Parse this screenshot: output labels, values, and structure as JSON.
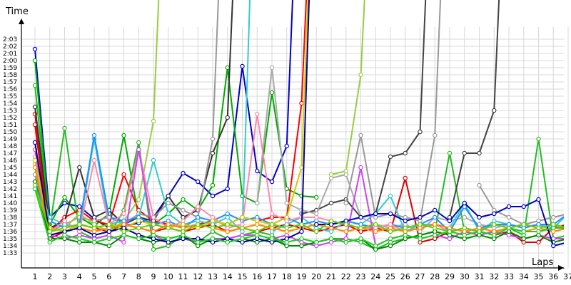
{
  "chart_data": {
    "type": "line",
    "xlabel": "Laps",
    "ylabel": "Time",
    "grid": true,
    "x": [
      1,
      2,
      3,
      4,
      5,
      6,
      7,
      8,
      9,
      10,
      11,
      12,
      13,
      14,
      15,
      16,
      17,
      18,
      19,
      20,
      21,
      22,
      23,
      24,
      25,
      26,
      27,
      28,
      29,
      30,
      31,
      32,
      33,
      34,
      35,
      36,
      37
    ],
    "ylim_seconds": [
      93,
      123
    ],
    "y_tick_labels": [
      "1:33",
      "1:34",
      "1:35",
      "1:36",
      "1:37",
      "1:38",
      "1:39",
      "1:40",
      "1:41",
      "1:42",
      "1:43",
      "1:44",
      "1:45",
      "1:46",
      "1:47",
      "1:48",
      "1:49",
      "1:50",
      "1:51",
      "1:52",
      "1:53",
      "1:54",
      "1:55",
      "1:56",
      "1:57",
      "1:58",
      "1:59",
      "2:00",
      "2:01",
      "2:02",
      "2:03"
    ],
    "series": [
      {
        "color": "#0000cc",
        "values": [
          "2:01.6",
          "1:38.0",
          "1:40.0",
          "1:39.5",
          "1:37.8",
          "1:36.5",
          "1:36.8",
          "1:37.2",
          "1:38.0",
          "1:41.0",
          "1:44.2",
          "1:43.0",
          "1:41.0",
          "1:42.0",
          "1:59.2",
          "1:44.5",
          "1:43.0",
          "1:48.0",
          "2:40.0",
          null,
          null,
          null,
          null,
          null,
          null,
          null,
          null,
          null,
          null,
          null,
          null,
          null,
          null,
          null,
          null,
          null,
          null
        ]
      },
      {
        "color": "#00aa00",
        "values": [
          "2:00.0",
          "1:37.0",
          "1:40.8",
          "1:38.0",
          "1:36.8",
          "1:38.5",
          "1:49.5",
          "1:38.0",
          "1:37.0",
          "1:38.5",
          "1:40.5",
          "1:39.0",
          "1:42.5",
          "1:59.0",
          "1:41.0",
          "1:40.0",
          "1:55.5",
          "1:42.0",
          "1:41.0",
          "1:40.8",
          "null",
          null,
          null,
          null,
          null,
          null,
          null,
          null,
          null,
          null,
          null,
          null,
          null,
          null,
          null,
          null,
          null
        ]
      },
      {
        "color": "#22bb22",
        "values": [
          "1:56.5",
          "1:36.5",
          "1:50.5",
          "1:36.0",
          "1:35.0",
          "1:35.5",
          "1:39.0",
          "1:48.5",
          "1:33.5",
          "1:34.0",
          "1:35.5",
          "1:34.5",
          "1:36.0",
          "1:35.0",
          "1:35.5",
          "1:36.0",
          "1:35.5",
          "1:34.0",
          "1:34.0",
          "1:34.5",
          "1:35.0",
          "1:35.0",
          "1:34.5",
          "1:33.5",
          "1:34.5",
          "1:35.0",
          "1:35.5",
          "1:36.0",
          "1:47.0",
          "1:36.0",
          "1:35.5",
          "1:36.0",
          "1:36.5",
          "1:35.5",
          "1:49.0",
          "1:35.0",
          "1:35.5"
        ]
      },
      {
        "color": "#ff0000",
        "values": [
          "1:52.5",
          "1:36.0",
          "1:38.0",
          "1:39.0",
          "1:37.5",
          "1:37.0",
          "1:44.0",
          "1:39.0",
          "1:37.5",
          "1:37.0",
          "1:36.5",
          "1:37.0",
          "1:37.5",
          "1:37.0",
          "1:38.0",
          "1:37.5",
          "1:38.0",
          "1:38.0",
          "1:54.0",
          "2:40.0",
          null,
          null,
          null,
          null,
          null,
          null,
          null,
          null,
          null,
          null,
          null,
          null,
          null,
          null,
          null,
          null,
          null
        ]
      },
      {
        "color": "#dd0000",
        "values": [
          "1:51.0",
          "1:35.0",
          "1:36.0",
          "1:37.0",
          "1:36.5",
          "1:36.0",
          "1:37.0",
          "1:36.5",
          "1:36.0",
          "1:36.5",
          "1:36.0",
          "1:36.5",
          "1:37.0",
          "1:36.0",
          "1:36.5",
          "1:36.0",
          "1:36.5",
          "1:37.0",
          "1:36.5",
          "1:36.0",
          "1:36.5",
          "1:37.0",
          "1:36.0",
          "1:36.5",
          "1:36.0",
          "1:43.5",
          "1:34.5",
          "1:35.0",
          "1:36.0",
          "1:36.5",
          "1:36.0",
          "1:35.5",
          "1:36.0",
          "1:34.5",
          "1:34.5",
          "1:36.5",
          "1:37.0"
        ]
      },
      {
        "color": "#333333",
        "values": [
          "1:53.5",
          "1:36.5",
          "1:37.5",
          "1:45.0",
          "1:38.0",
          "1:39.0",
          "1:37.0",
          "1:38.0",
          "1:37.5",
          "1:41.0",
          "1:38.0",
          "1:39.0",
          "1:47.0",
          "1:52.0",
          "2:40.0",
          null,
          null,
          null,
          null,
          null,
          null,
          null,
          null,
          null,
          null,
          null,
          null,
          null,
          null,
          null,
          null,
          null,
          null,
          null,
          null,
          null,
          null
        ]
      },
      {
        "color": "#444444",
        "values": [
          null,
          null,
          null,
          null,
          null,
          null,
          null,
          null,
          null,
          null,
          null,
          null,
          null,
          null,
          null,
          null,
          null,
          null,
          "1:38.5",
          "1:39.0",
          "1:40.0",
          "1:40.5",
          "1:38.0",
          "1:38.5",
          "1:46.5",
          "1:47.0",
          "1:50.0",
          "2:40.0",
          null,
          null,
          null,
          null,
          null,
          null,
          null,
          null,
          null
        ]
      },
      {
        "color": "#444444",
        "values": [
          null,
          null,
          null,
          null,
          null,
          null,
          null,
          null,
          null,
          null,
          null,
          null,
          null,
          null,
          null,
          null,
          null,
          null,
          null,
          null,
          null,
          null,
          null,
          null,
          null,
          null,
          null,
          null,
          "1:38.0",
          "1:47.0",
          "1:47.0",
          "1:53.0",
          "2:40.0",
          null,
          null,
          null,
          null
        ]
      },
      {
        "color": "#999999",
        "values": [
          "1:44.0",
          "1:36.0",
          "1:37.0",
          "1:38.0",
          "1:37.5",
          "1:38.0",
          "1:37.0",
          "1:38.5",
          "1:38.0",
          "1:40.0",
          "1:39.0",
          "1:38.0",
          "1:49.0",
          "2:40.0",
          null,
          null,
          null,
          null,
          null,
          null,
          null,
          "1:40.0",
          "1:49.5",
          "1:38.0",
          "1:38.5",
          "1:38.0",
          "1:37.5",
          "1:49.5",
          "2:40.0",
          null,
          "1:42.5",
          "1:39.0",
          "1:38.0",
          "1:37.0",
          "1:37.5",
          "1:38.0",
          "1:38.5"
        ]
      },
      {
        "color": "#aaaaaa",
        "values": [
          null,
          null,
          null,
          null,
          null,
          null,
          null,
          null,
          null,
          null,
          null,
          null,
          null,
          null,
          null,
          "1:40.0",
          "1:59.0",
          "1:40.0",
          "1:39.0",
          "1:38.5",
          "1:43.5",
          "1:44.0",
          "1:38.0",
          "1:37.0",
          "1:36.5",
          "1:37.0",
          "1:36.0",
          "1:38.0",
          "1:37.5",
          "1:38.0",
          "1:37.0",
          "1:36.5",
          "1:37.0",
          "1:36.5",
          "1:37.0",
          "1:36.0",
          "1:36.5"
        ]
      },
      {
        "color": "#99cc44",
        "values": [
          "1:45.5",
          "1:37.5",
          "1:36.5",
          "1:38.5",
          "1:37.0",
          "1:36.0",
          "1:37.5",
          "1:40.5",
          "1:51.5",
          "2:40.0",
          null,
          null,
          null,
          null,
          null,
          null,
          null,
          null,
          null,
          null,
          "1:44.0",
          "1:44.5",
          "1:58.0",
          "2:40.0",
          null,
          null,
          null,
          null,
          null,
          null,
          null,
          null,
          null,
          null,
          null,
          null,
          null
        ]
      },
      {
        "color": "#33cccc",
        "values": [
          "1:42.0",
          "1:38.0",
          "1:37.0",
          "1:36.5",
          "1:49.0",
          "1:37.0",
          "1:37.5",
          "1:38.0",
          "1:46.0",
          "1:38.5",
          "1:37.0",
          "1:37.5",
          "1:37.0",
          "1:38.0",
          "1:36.0",
          "2:40.0",
          null,
          null,
          null,
          null,
          null,
          null,
          null,
          null,
          null,
          null,
          null,
          null,
          null,
          null,
          null,
          null,
          null,
          null,
          null,
          null,
          null
        ]
      },
      {
        "color": "#33cccc",
        "values": [
          null,
          null,
          null,
          null,
          null,
          null,
          null,
          null,
          null,
          null,
          null,
          null,
          null,
          null,
          null,
          null,
          "1:36.0",
          "1:37.0",
          "1:38.0",
          "1:36.5",
          "1:36.0",
          "1:37.5",
          "1:37.0",
          "1:38.5",
          "1:41.0",
          "1:36.0",
          "1:37.0",
          "1:37.0",
          "1:36.5",
          "1:40.0",
          "1:36.0",
          "1:37.5",
          "1:37.0",
          "1:36.5",
          "1:37.0",
          "1:36.5",
          "1:38.5"
        ]
      },
      {
        "color": "#1e90ff",
        "values": [
          "1:43.0",
          "1:37.5",
          "1:36.5",
          "1:37.0",
          "1:49.5",
          "1:38.0",
          "1:37.5",
          "1:38.0",
          "1:37.0",
          "1:37.5",
          "1:36.5",
          "1:38.0",
          "1:37.5",
          "1:38.5",
          "1:37.5",
          "1:38.0",
          "1:37.0",
          "1:38.0",
          "1:37.0",
          "1:37.5",
          "1:37.0",
          "1:37.5",
          "1:37.0",
          "1:36.5",
          "1:37.0",
          "1:36.5",
          "1:37.0",
          "1:38.0",
          "1:36.0",
          "1:39.5",
          "1:36.5",
          "1:37.0",
          "1:37.0",
          "1:36.5",
          "1:37.0",
          "1:37.0",
          "1:38.5"
        ]
      },
      {
        "color": "#ff88aa",
        "values": [
          "1:46.5",
          "1:36.0",
          "1:37.5",
          "1:36.0",
          "1:46.0",
          "1:37.0",
          "1:38.5",
          "1:47.5",
          "1:38.0",
          "1:36.5",
          "1:37.5",
          "1:39.5",
          "1:38.0",
          "1:36.5",
          "1:37.0",
          "1:52.5",
          "1:38.5",
          "1:37.5",
          "1:38.0",
          "1:38.0",
          "1:37.5",
          "1:37.0",
          "1:36.5",
          "1:36.5",
          "1:37.0",
          "1:36.0",
          "1:36.5",
          "1:37.0",
          "1:36.0",
          "1:36.5",
          "1:36.0",
          "1:37.0",
          "1:36.5",
          "1:37.0",
          "1:36.5",
          "1:37.0",
          "1:36.0"
        ]
      },
      {
        "color": "#cc44ee",
        "values": [
          "1:47.5",
          "1:35.5",
          "1:35.0",
          "1:35.5",
          "1:35.0",
          "1:35.5",
          "1:34.5",
          "1:47.5",
          "1:35.5",
          "1:34.5",
          "1:35.0",
          "1:34.5",
          "1:35.0",
          "1:35.0",
          "1:35.5",
          "1:35.5",
          "1:35.0",
          "1:35.5",
          "1:34.5",
          "1:34.0",
          "1:34.5",
          "1:35.0",
          "1:45.0",
          "1:34.0",
          "1:35.0",
          "1:35.5",
          "1:35.0",
          "1:35.5",
          "1:35.0",
          "1:36.0",
          "1:35.5",
          "1:36.0",
          "1:35.5",
          "1:35.0",
          "1:35.5",
          "1:35.0",
          "1:35.0"
        ]
      },
      {
        "color": "#cccc00",
        "values": [
          "1:46.0",
          "1:36.5",
          "1:36.0",
          "1:37.0",
          "1:36.5",
          "1:37.0",
          "1:36.5",
          "1:37.5",
          "1:37.0",
          "1:36.5",
          "1:37.0",
          "1:36.5",
          "1:37.5",
          "1:37.0",
          "1:38.0",
          "1:37.5",
          "1:37.0",
          "1:38.0",
          "1:45.0",
          "2:40.0",
          null,
          null,
          null,
          null,
          null,
          null,
          null,
          null,
          null,
          null,
          null,
          null,
          null,
          null,
          null,
          null,
          null
        ]
      },
      {
        "color": "#ff8800",
        "values": [
          "1:45.0",
          "1:35.5",
          "1:36.0",
          "1:36.5",
          "1:36.0",
          "1:36.5",
          "1:37.0",
          "1:36.5",
          "1:36.0",
          "1:37.0",
          "1:36.5",
          "1:37.0",
          "1:36.5",
          "1:36.0",
          "1:36.5",
          "1:37.0",
          "1:36.5",
          "1:36.0",
          "1:36.5",
          "1:37.0",
          "1:36.5",
          "1:36.0",
          "1:36.5",
          "1:36.0",
          "1:36.5",
          "1:36.0",
          "1:36.5",
          "1:37.0",
          "1:36.5",
          "1:36.0",
          "1:36.5",
          "1:36.0",
          "1:36.5",
          "1:36.0",
          "1:36.5",
          "1:36.0",
          "1:36.5"
        ]
      },
      {
        "color": "#008800",
        "values": [
          "1:43.0",
          "1:35.0",
          "1:35.0",
          "1:34.5",
          "1:34.5",
          "1:34.0",
          "1:35.5",
          "1:35.0",
          "1:34.5",
          "1:35.0",
          "1:35.5",
          "1:34.0",
          "1:35.0",
          "1:34.5",
          "1:35.0",
          "1:34.5",
          "1:35.0",
          "1:34.0",
          "1:34.0",
          "1:34.5",
          "1:35.0",
          "1:34.5",
          "1:35.0",
          "1:33.5",
          "1:34.0",
          "1:35.0",
          "1:35.5",
          "1:36.0",
          "1:35.5",
          "1:35.0",
          "1:35.5",
          "1:35.0",
          "1:36.0",
          "1:35.0",
          "1:35.5",
          "1:34.5",
          "1:35.0"
        ]
      },
      {
        "color": "#000099",
        "values": [
          "1:48.5",
          "1:35.5",
          "1:36.0",
          "1:36.5",
          "1:35.5",
          "1:36.0",
          "1:36.5",
          "1:35.5",
          "1:35.0",
          "1:34.5",
          "1:35.0",
          "1:35.0",
          "1:34.5",
          "1:35.0",
          "1:34.5",
          "1:35.0",
          "1:34.5",
          "1:35.0",
          "1:36.0",
          "2:40.0",
          null,
          null,
          null,
          null,
          null,
          null,
          null,
          null,
          null,
          null,
          null,
          null,
          null,
          null,
          null,
          null,
          null
        ]
      },
      {
        "color": "#0000bb",
        "values": [
          null,
          null,
          null,
          null,
          null,
          null,
          null,
          null,
          null,
          null,
          null,
          null,
          null,
          null,
          null,
          null,
          null,
          null,
          null,
          "1:37.0",
          "1:37.0",
          "1:37.5",
          "1:38.0",
          "1:38.5",
          "1:38.5",
          "1:37.5",
          "1:38.0",
          "1:39.0",
          "1:37.5",
          "1:40.0",
          "1:38.0",
          "1:38.5",
          "1:39.5",
          "1:39.5",
          "1:40.5",
          "1:34.0",
          "1:34.5"
        ]
      },
      {
        "color": "#66cc00",
        "values": [
          "1:42.5",
          "1:36.0",
          "1:36.5",
          "1:37.0",
          "1:36.5",
          "1:37.0",
          "1:36.0",
          "1:36.5",
          "1:37.0",
          "1:36.5",
          "1:36.0",
          "1:37.0",
          "1:36.5",
          "1:37.0",
          "1:36.5",
          "1:36.0",
          "1:37.0",
          "1:36.5",
          "1:37.0",
          "1:36.0",
          "1:37.5",
          "1:37.0",
          "1:36.5",
          "1:37.0",
          "1:36.0",
          "1:36.5",
          "1:37.0",
          "1:36.5",
          "1:36.0",
          "1:36.5",
          "1:36.0",
          "1:37.0",
          "1:36.5",
          "1:37.0",
          "1:36.5",
          "1:37.0",
          "1:36.5"
        ]
      },
      {
        "color": "#22cc22",
        "values": [
          "1:42.0",
          "1:34.5",
          "1:35.5",
          "1:35.0",
          "1:34.5",
          "1:35.0",
          "1:35.5",
          "1:35.0",
          "1:35.5",
          "1:35.0",
          "1:35.5",
          "1:34.5",
          "1:35.0",
          "1:34.5",
          "1:35.0",
          "1:35.5",
          "1:35.0",
          "1:34.5",
          "1:35.0",
          "1:34.5",
          "1:35.0",
          "1:34.5",
          "1:35.0",
          "1:34.0",
          "1:35.0",
          "1:35.5",
          "1:35.0",
          "1:35.5",
          "1:36.0",
          "1:35.5",
          "1:36.0",
          "1:35.5",
          "1:36.5",
          "1:36.0",
          "1:36.0",
          "1:36.5",
          "1:36.5"
        ]
      }
    ]
  }
}
